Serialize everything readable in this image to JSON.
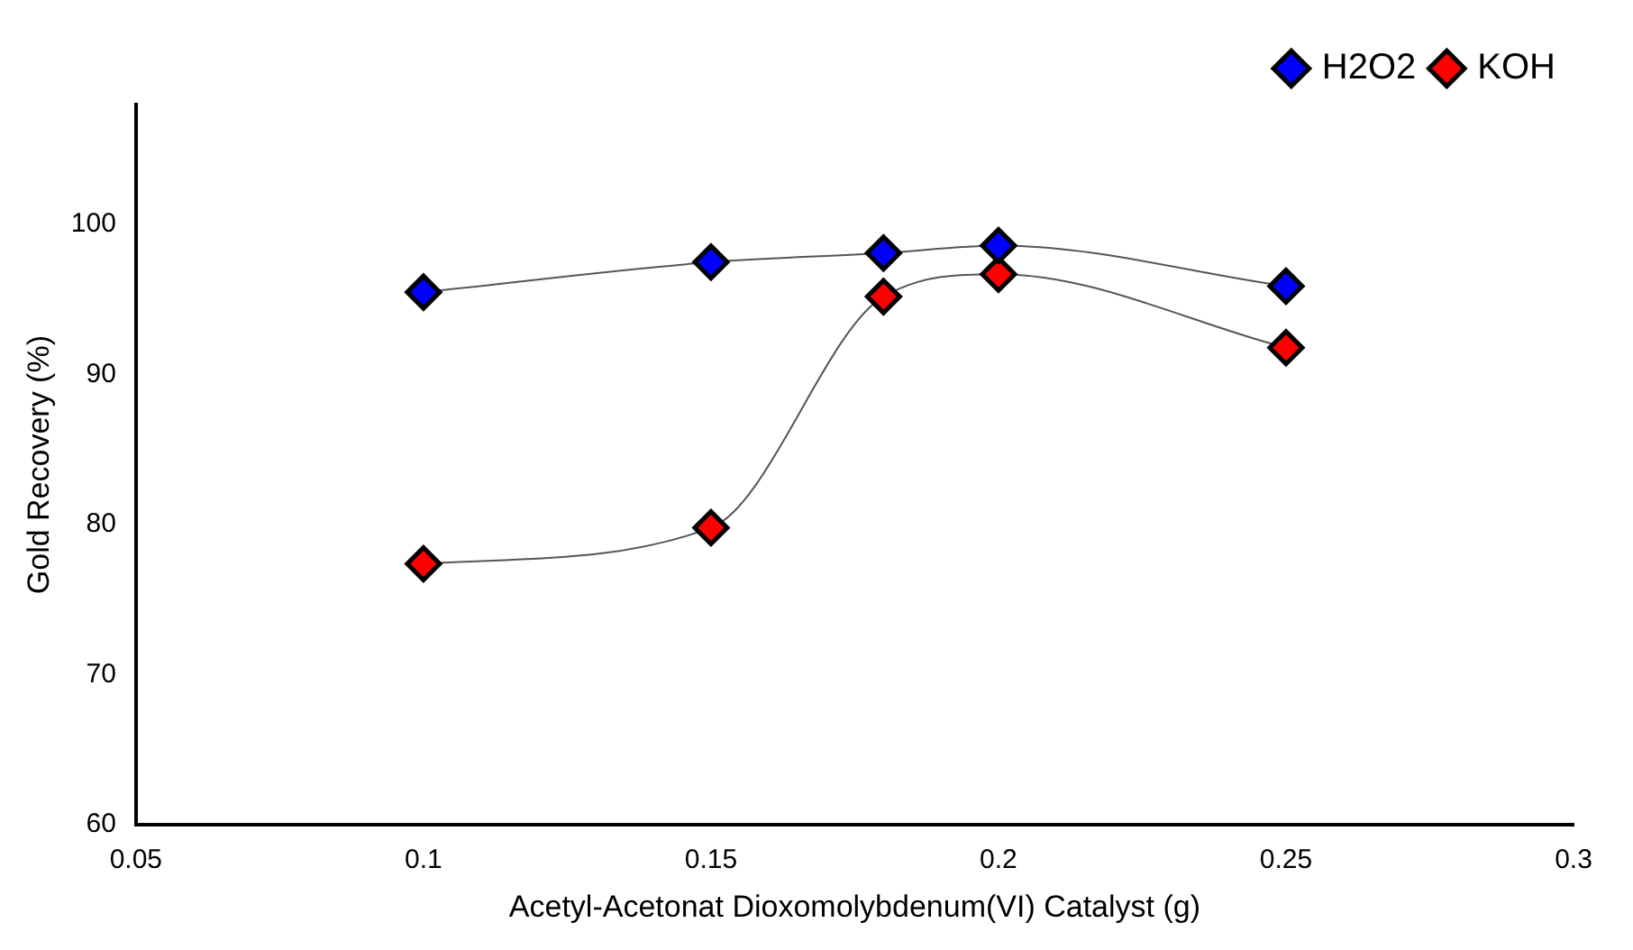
{
  "chart_data": {
    "type": "line",
    "xlabel": "Acetyl-Acetonat Dioxomolybdenum(VI) Catalyst (g)",
    "ylabel": "Gold Recovery (%)",
    "x": [
      0.1,
      0.15,
      0.18,
      0.2,
      0.25
    ],
    "series": [
      {
        "name": "H2O2",
        "color": "#0000ff",
        "values": [
          95.5,
          97.5,
          98.1,
          98.6,
          95.9
        ]
      },
      {
        "name": "KOH",
        "color": "#ff0000",
        "values": [
          77.4,
          79.8,
          95.2,
          96.7,
          91.8
        ]
      }
    ],
    "xlim": [
      0.05,
      0.3
    ],
    "xticks": [
      0.05,
      0.1,
      0.15,
      0.2,
      0.25,
      0.3
    ],
    "ylim": [
      60,
      108
    ],
    "yticks": [
      60,
      70,
      80,
      90,
      100
    ],
    "grid": false,
    "legend": "top right",
    "marker": "diamond",
    "line_style": "solid"
  }
}
